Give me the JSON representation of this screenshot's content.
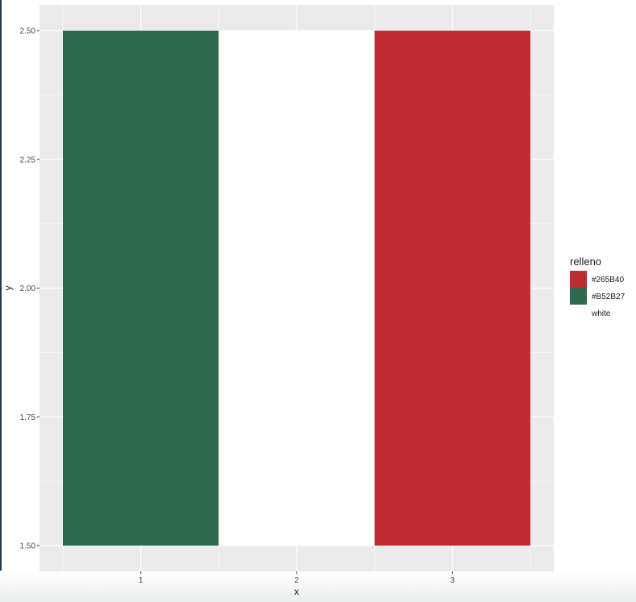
{
  "chart_data": {
    "type": "bar",
    "x": [
      1,
      2,
      3
    ],
    "x_tick_labels": [
      "1",
      "2",
      "3"
    ],
    "bars": [
      {
        "x": 1,
        "ymin": 1.5,
        "ymax": 2.5,
        "fill": "#B52B27",
        "color": "#2D6A4F"
      },
      {
        "x": 2,
        "ymin": 1.5,
        "ymax": 2.5,
        "fill": "white",
        "color": "#FFFFFF"
      },
      {
        "x": 3,
        "ymin": 1.5,
        "ymax": 2.5,
        "fill": "#265B40",
        "color": "#C02C31"
      }
    ],
    "xlabel": "x",
    "ylabel": "y",
    "xlim": [
      0.5,
      3.5
    ],
    "ylim": [
      1.5,
      2.5
    ],
    "y_ticks": [
      1.5,
      1.75,
      2.0,
      2.25,
      2.5
    ],
    "y_tick_labels": [
      "1.50",
      "1.75",
      "2.00",
      "2.25",
      "2.50"
    ],
    "grid": true,
    "panel_background": "#EBEBEB",
    "legend": {
      "title": "relleno",
      "position": "right",
      "entries": [
        {
          "label": "#265B40",
          "color": "#C02C31"
        },
        {
          "label": "#B52B27",
          "color": "#2D6A4F"
        },
        {
          "label": "white",
          "color": "#FFFFFF"
        }
      ]
    }
  }
}
